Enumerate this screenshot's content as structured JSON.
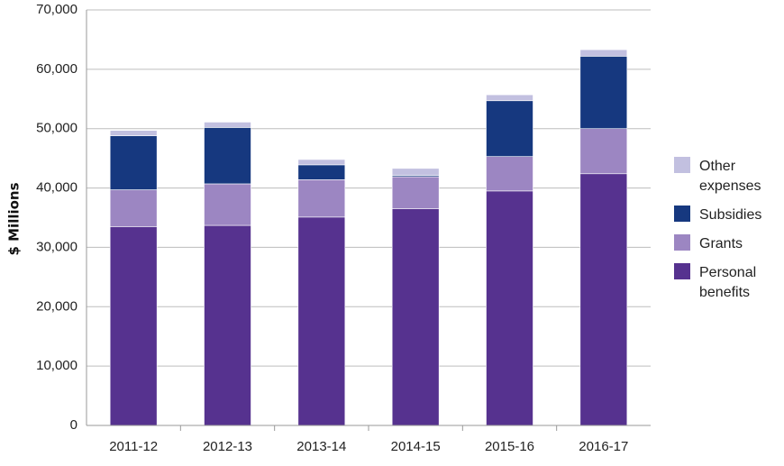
{
  "chart_data": {
    "type": "bar",
    "stacked": true,
    "title": "",
    "xlabel": "",
    "ylabel": "$ Millions",
    "ylim": [
      0,
      70000
    ],
    "yticks": [
      0,
      10000,
      20000,
      30000,
      40000,
      50000,
      60000,
      70000
    ],
    "ytick_labels": [
      "0",
      "10,000",
      "20,000",
      "30,000",
      "40,000",
      "50,000",
      "60,000",
      "70,000"
    ],
    "grid": "horizontal",
    "legend_position": "right",
    "categories": [
      "2011-12",
      "2012-13",
      "2013-14",
      "2014-15",
      "2015-16",
      "2016-17"
    ],
    "series": [
      {
        "name": "Personal benefits",
        "label_lines": [
          "Personal",
          "benefits"
        ],
        "color": "#56328F",
        "values": [
          33500,
          33700,
          35100,
          36500,
          39500,
          42400
        ]
      },
      {
        "name": "Grants",
        "label_lines": [
          "Grants"
        ],
        "color": "#9C86C2",
        "values": [
          6200,
          7000,
          6300,
          5400,
          5800,
          7600
        ]
      },
      {
        "name": "Subsidies",
        "label_lines": [
          "Subsidies"
        ],
        "color": "#16387F",
        "values": [
          9100,
          9500,
          2500,
          200,
          9400,
          12200
        ]
      },
      {
        "name": "Other expenses",
        "label_lines": [
          "Other",
          "expenses"
        ],
        "color": "#C2C0E0",
        "values": [
          900,
          900,
          900,
          1200,
          1000,
          1100
        ]
      }
    ]
  }
}
